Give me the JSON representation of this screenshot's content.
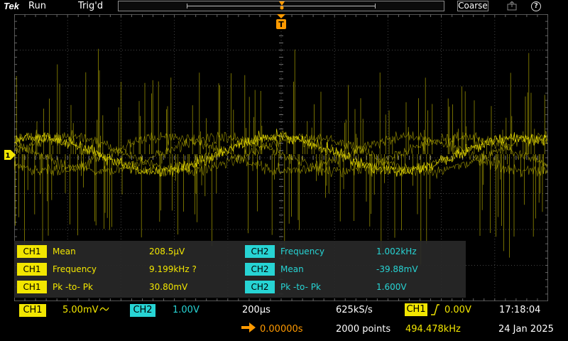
{
  "topbar": {
    "brand": "Tek",
    "run_state": "Run",
    "trigger_state": "Trig'd",
    "coarse_label": "Coarse",
    "help_label": "?"
  },
  "icons": {
    "export": "export-icon",
    "help": "help-icon",
    "trigger": "trigger-position-icon"
  },
  "trigger_marker_label": "T",
  "ch1_marker_label": "1",
  "colors": {
    "ch1": "#f2e600",
    "ch2": "#27d4d4",
    "accent": "#ff9a00"
  },
  "measurements": [
    {
      "channel": "CH1",
      "type": "Mean",
      "value": "208.5µV"
    },
    {
      "channel": "CH1",
      "type": "Frequency",
      "value": "9.199kHz ?"
    },
    {
      "channel": "CH1",
      "type": "Pk -to- Pk",
      "value": "30.80mV"
    },
    {
      "channel": "CH2",
      "type": "Frequency",
      "value": "1.002kHz"
    },
    {
      "channel": "CH2",
      "type": "Mean",
      "value": "-39.88mV"
    },
    {
      "channel": "CH2",
      "type": "Pk -to- Pk",
      "value": "1.600V"
    }
  ],
  "bottom": {
    "ch1_label": "CH1",
    "ch1_scale": "5.00mV",
    "ch2_label": "CH2",
    "ch2_scale": "1.00V",
    "timebase": "200µs",
    "sample_rate": "625kS/s",
    "record_length": "2000 points",
    "horizontal_position": "0.00000s",
    "trigger_source": "CH1",
    "trigger_level": "0.00V",
    "trigger_frequency": "494.478kHz",
    "time": "17:18:04",
    "date": "24 Jan 2025"
  }
}
